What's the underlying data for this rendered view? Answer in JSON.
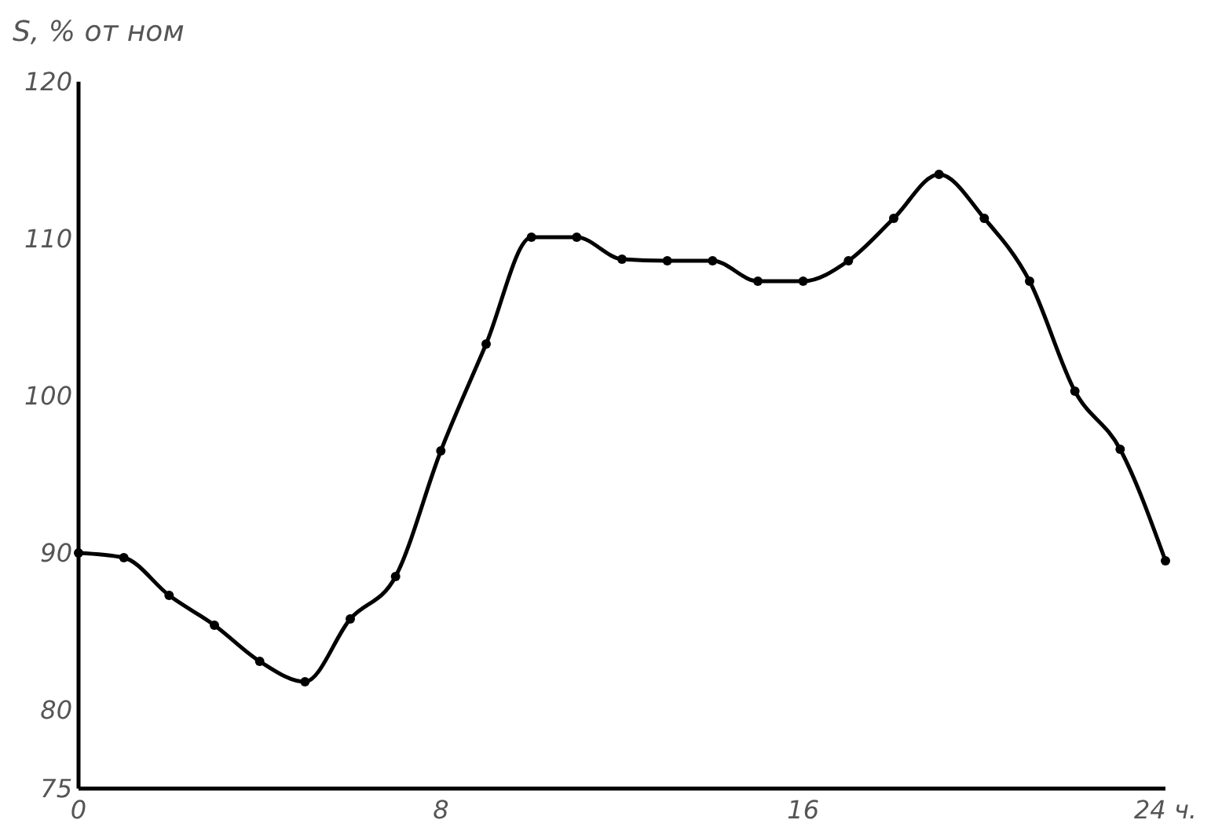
{
  "chart_data": {
    "type": "line",
    "ylabel": "S, % от ном",
    "x": [
      0,
      1,
      2,
      3,
      4,
      5,
      6,
      7,
      8,
      9,
      10,
      11,
      12,
      13,
      14,
      15,
      16,
      17,
      18,
      19,
      20,
      21,
      22,
      23,
      24
    ],
    "series": [
      {
        "color": "#000000",
        "values": [
          90,
          89.7,
          87.3,
          85.4,
          83.1,
          81.8,
          85.8,
          88.5,
          96.5,
          103.3,
          110.1,
          110.1,
          108.7,
          108.6,
          108.6,
          107.3,
          107.3,
          108.6,
          111.3,
          114.1,
          111.3,
          107.3,
          100.3,
          96.6,
          89.5
        ]
      }
    ],
    "xlim": [
      0,
      24
    ],
    "xticks": [
      0,
      8,
      16,
      {
        "value": 24,
        "label": "24 ч."
      }
    ],
    "ylim": [
      75,
      120
    ],
    "yticks": [
      75,
      80,
      90,
      100,
      110,
      120
    ],
    "marker": "circle",
    "line_style": "solid"
  }
}
